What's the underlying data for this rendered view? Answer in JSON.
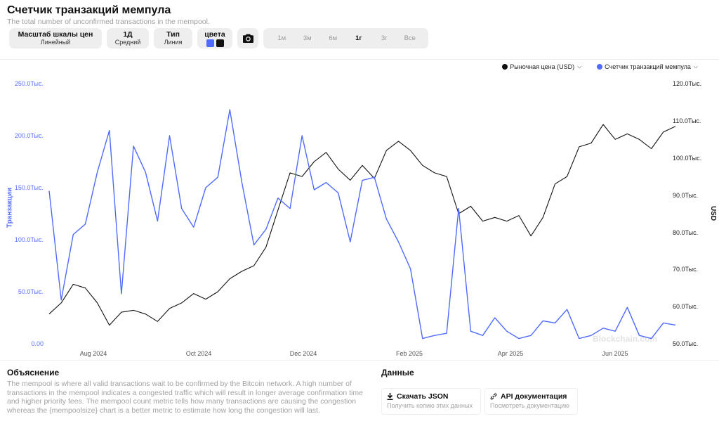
{
  "header": {
    "title": "Счетчик транзакций мемпула",
    "subtitle": "The total number of unconfirmed transactions in the mempool."
  },
  "toolbar": {
    "scale": {
      "label": "Масштаб шкалы цен",
      "value": "Линейный"
    },
    "period": {
      "label": "1Д",
      "value": "Средний"
    },
    "type": {
      "label": "Тип",
      "value": "Линия"
    },
    "colors": {
      "label": "цвета",
      "swatches": [
        "#4f6bff",
        "#111111"
      ]
    },
    "camera_icon": "camera-icon",
    "ranges": [
      "1м",
      "3м",
      "6м",
      "1г",
      "3г",
      "Все"
    ],
    "active_range": "1г"
  },
  "legend": {
    "price": {
      "label": "Рыночная цена (USD)",
      "color": "#111111"
    },
    "mempool": {
      "label": "Счетчик транзакций мемпула",
      "color": "#4f6bff"
    }
  },
  "axes": {
    "left_label": "Транзакции",
    "right_label": "USD",
    "left_ticks": [
      "250.0Тыс.",
      "200.0Тыс.",
      "150.0Тыс.",
      "100.0Тыс.",
      "50.0Тыс.",
      "0.00"
    ],
    "right_ticks": [
      "120.0Тыс.",
      "110.0Тыс.",
      "100.0Тыс.",
      "90.0Тыс.",
      "80.0Тыс.",
      "70.0Тыс.",
      "60.0Тыс.",
      "50.0Тыс."
    ],
    "x_ticks": [
      "Aug 2024",
      "Oct 2024",
      "Dec 2024",
      "Feb 2025",
      "Apr 2025",
      "Jun 2025"
    ]
  },
  "watermark": "Blockchain.com",
  "explanation": {
    "title": "Объяснение",
    "text": "The mempool is where all valid transactions wait to be confirmed by the Bitcoin network. A high number of transactions in the mempool indicates a congested traffic which will result in longer average confirmation time and higher priority fees. The mempool count metric tells how many transactions are causing the congestion whereas the {mempoolsize} chart is a better metric to estimate how long the congestion will last."
  },
  "data_section": {
    "title": "Данные",
    "download": {
      "label": "Скачать JSON",
      "sub": "Получить копию этих данных",
      "icon": "download-icon"
    },
    "api": {
      "label": "API документация",
      "sub": "Посмотреть документацию",
      "icon": "link-icon"
    }
  },
  "chart_data": {
    "type": "line",
    "title": "Счетчик транзакций мемпула",
    "xlabel": "",
    "ylabel": "Транзакции",
    "ylabel_right": "USD",
    "ylim": [
      0,
      250000
    ],
    "ylim_right": [
      50000,
      120000
    ],
    "x_ticks": [
      "Aug 2024",
      "Oct 2024",
      "Dec 2024",
      "Feb 2025",
      "Apr 2025",
      "Jun 2025"
    ],
    "grid": false,
    "legend_position": "top-right",
    "x": [
      "2024-07-05",
      "2024-07-12",
      "2024-07-19",
      "2024-07-26",
      "2024-08-02",
      "2024-08-09",
      "2024-08-16",
      "2024-08-23",
      "2024-08-30",
      "2024-09-06",
      "2024-09-13",
      "2024-09-20",
      "2024-09-27",
      "2024-10-04",
      "2024-10-11",
      "2024-10-18",
      "2024-10-25",
      "2024-11-01",
      "2024-11-08",
      "2024-11-15",
      "2024-11-22",
      "2024-11-29",
      "2024-12-06",
      "2024-12-13",
      "2024-12-20",
      "2024-12-27",
      "2025-01-03",
      "2025-01-10",
      "2025-01-17",
      "2025-01-24",
      "2025-01-31",
      "2025-02-07",
      "2025-02-14",
      "2025-02-21",
      "2025-02-28",
      "2025-03-07",
      "2025-03-14",
      "2025-03-21",
      "2025-03-28",
      "2025-04-04",
      "2025-04-11",
      "2025-04-18",
      "2025-04-25",
      "2025-05-02",
      "2025-05-09",
      "2025-05-16",
      "2025-05-23",
      "2025-05-30",
      "2025-06-06",
      "2025-06-13",
      "2025-06-20",
      "2025-06-27",
      "2025-07-04"
    ],
    "series": [
      {
        "name": "Счетчик транзакций мемпула",
        "axis": "left",
        "color": "#4f6bff",
        "values": [
          147000,
          42000,
          105000,
          115000,
          165000,
          205000,
          48000,
          190000,
          165000,
          118000,
          200000,
          130000,
          112000,
          150000,
          160000,
          225000,
          155000,
          95000,
          110000,
          140000,
          130000,
          200000,
          148000,
          155000,
          145000,
          98000,
          157000,
          160000,
          120000,
          98000,
          72000,
          5000,
          8000,
          10000,
          130000,
          12000,
          8000,
          25000,
          12000,
          5000,
          8000,
          22000,
          20000,
          33000,
          5000,
          8000,
          15000,
          12000,
          35000,
          8000,
          5000,
          20000,
          18000
        ]
      },
      {
        "name": "Рыночная цена (USD)",
        "axis": "right",
        "color": "#111111",
        "values": [
          58000,
          61000,
          66000,
          65000,
          61000,
          55000,
          58500,
          59000,
          58000,
          56000,
          59500,
          61000,
          63500,
          62000,
          64000,
          67500,
          69500,
          71000,
          76000,
          86000,
          96000,
          95000,
          99000,
          101500,
          97000,
          94000,
          98000,
          94500,
          102000,
          104500,
          102000,
          98000,
          96000,
          95000,
          85000,
          87000,
          83000,
          84000,
          83000,
          84500,
          79000,
          84000,
          93000,
          95000,
          103000,
          104000,
          109000,
          105000,
          106500,
          105000,
          102500,
          107000,
          108500
        ]
      }
    ]
  }
}
